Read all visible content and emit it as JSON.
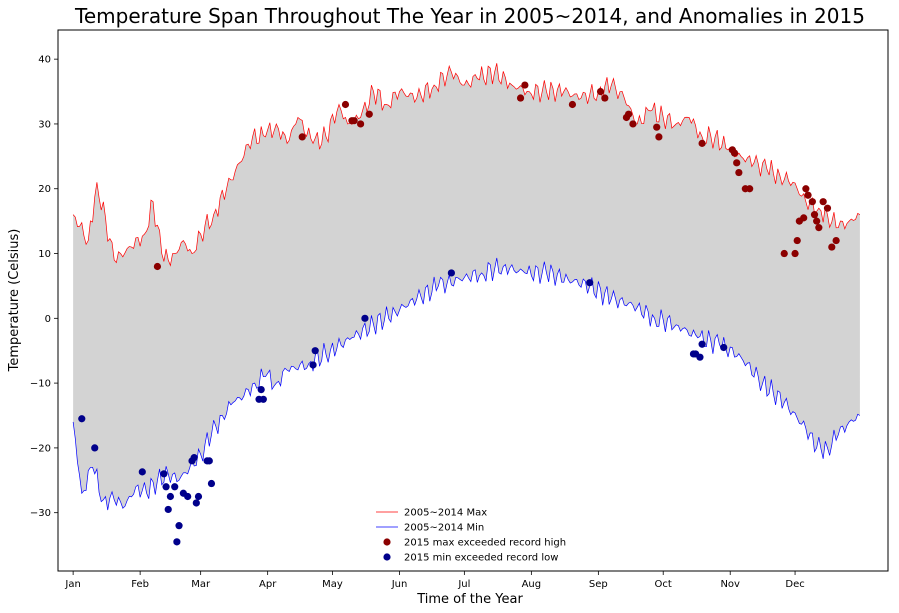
{
  "chart_data": {
    "type": "line",
    "title": "Temperature Span Throughout The Year in 2005~2014, and Anomalies in 2015",
    "xlabel": "Time of the Year",
    "ylabel": "Temperature (Celsius)",
    "xlim": [
      -6,
      378
    ],
    "ylim": [
      -39,
      44.5
    ],
    "x_ticks": [
      {
        "day": 1,
        "label": "Jan"
      },
      {
        "day": 32,
        "label": "Feb"
      },
      {
        "day": 60,
        "label": "Mar"
      },
      {
        "day": 91,
        "label": "Apr"
      },
      {
        "day": 121,
        "label": "May"
      },
      {
        "day": 152,
        "label": "Jun"
      },
      {
        "day": 182,
        "label": "Jul"
      },
      {
        "day": 213,
        "label": "Aug"
      },
      {
        "day": 244,
        "label": "Sep"
      },
      {
        "day": 274,
        "label": "Oct"
      },
      {
        "day": 305,
        "label": "Nov"
      },
      {
        "day": 335,
        "label": "Dec"
      }
    ],
    "y_ticks": [
      -30,
      -20,
      -10,
      0,
      10,
      20,
      30,
      40
    ],
    "fill_color": "#d3d3d3",
    "legend": {
      "position": "lower center",
      "entries": [
        {
          "label": "2005~2014 Max",
          "color": "#ff0000",
          "marker": "line"
        },
        {
          "label": "2005~2014 Min",
          "color": "#0000ff",
          "marker": "line"
        },
        {
          "label": "2015 max exceeded record high",
          "color": "#8b0000",
          "marker": "dot"
        },
        {
          "label": "2015 min exceeded record low",
          "color": "#00008b",
          "marker": "dot"
        }
      ]
    },
    "series": [
      {
        "name": "2005~2014 Max",
        "color": "#ff0000",
        "x": [
          1,
          8,
          12,
          20,
          28,
          34,
          38,
          42,
          45,
          48,
          52,
          56,
          60,
          66,
          72,
          78,
          84,
          90,
          95,
          100,
          105,
          112,
          118,
          124,
          128,
          134,
          140,
          146,
          152,
          160,
          168,
          176,
          182,
          188,
          196,
          204,
          212,
          220,
          228,
          236,
          244,
          250,
          256,
          262,
          268,
          274,
          280,
          286,
          292,
          298,
          304,
          310,
          316,
          322,
          328,
          334,
          340,
          346,
          350,
          355,
          360,
          365
        ],
        "y": [
          16,
          12,
          21,
          9,
          11,
          13,
          18,
          10,
          9,
          10,
          12,
          10,
          13,
          16,
          20,
          24,
          28,
          28,
          30,
          27,
          31,
          27,
          28,
          33,
          30,
          31,
          35,
          33,
          35,
          34,
          36,
          38,
          36,
          37,
          38,
          36,
          35,
          35,
          35,
          34,
          35,
          36,
          34,
          30,
          32,
          31,
          30,
          31,
          28,
          28,
          26,
          25,
          24,
          23,
          22,
          21,
          18,
          17,
          16,
          14,
          15,
          16
        ]
      },
      {
        "name": "2005~2014 Min",
        "color": "#0000ff",
        "x": [
          1,
          5,
          10,
          15,
          20,
          25,
          30,
          35,
          40,
          45,
          50,
          55,
          60,
          65,
          70,
          75,
          80,
          85,
          90,
          95,
          100,
          110,
          120,
          130,
          140,
          150,
          160,
          170,
          180,
          190,
          200,
          210,
          220,
          230,
          240,
          250,
          260,
          270,
          280,
          290,
          300,
          310,
          320,
          330,
          340,
          345,
          350,
          355,
          360,
          365
        ],
        "y": [
          -16,
          -27,
          -23,
          -28,
          -28,
          -29,
          -26,
          -27,
          -25,
          -24,
          -25,
          -23,
          -21,
          -18,
          -15,
          -13,
          -12,
          -10,
          -9,
          -10,
          -8,
          -7,
          -5,
          -3,
          -1,
          1,
          3,
          5,
          6,
          7,
          8,
          7,
          7,
          6,
          5,
          3,
          2,
          0,
          -1,
          -3,
          -4,
          -6,
          -10,
          -13,
          -17,
          -20,
          -20,
          -18,
          -16,
          -15
        ]
      }
    ],
    "scatter": [
      {
        "name": "2015 max exceeded record high",
        "color": "#8b0000",
        "x": [
          40,
          107,
          127,
          130,
          131,
          134,
          138,
          208,
          210,
          232,
          245,
          247,
          257,
          258,
          260,
          271,
          272,
          292,
          306,
          307,
          308,
          309,
          312,
          314,
          330,
          335,
          336,
          337,
          339,
          340,
          341,
          343,
          344,
          345,
          346,
          348,
          350,
          352,
          354
        ],
        "y": [
          8,
          28,
          33,
          30.5,
          30.5,
          30,
          31.5,
          34,
          36,
          33,
          35,
          34,
          31,
          31.5,
          30,
          29.5,
          28,
          27,
          26,
          25.5,
          24,
          22.5,
          20,
          20,
          10,
          10,
          12,
          15,
          15.5,
          20,
          19,
          18,
          16,
          15,
          14,
          18,
          17,
          11,
          12
        ]
      },
      {
        "name": "2015 min exceeded record low",
        "color": "#00008b",
        "x": [
          5,
          11,
          33,
          43,
          44,
          45,
          46,
          48,
          49,
          50,
          52,
          54,
          56,
          57,
          58,
          59,
          63,
          64,
          65,
          87,
          88,
          89,
          112,
          113,
          136,
          176,
          240,
          288,
          289,
          291,
          292,
          302
        ],
        "y": [
          -15.5,
          -20,
          -23.7,
          -24,
          -26,
          -29.5,
          -27.5,
          -26,
          -34.5,
          -32,
          -27,
          -27.5,
          -22,
          -21.5,
          -28.5,
          -27.5,
          -22,
          -22,
          -25.5,
          -12.5,
          -11,
          -12.5,
          -7.2,
          -5,
          0,
          7,
          5.5,
          -5.5,
          -5.5,
          -6,
          -4,
          -4.5
        ]
      }
    ]
  }
}
